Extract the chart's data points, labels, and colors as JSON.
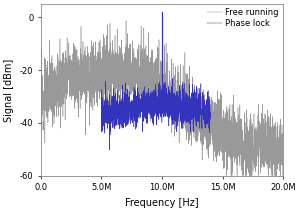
{
  "title": "",
  "xlabel": "Frequency [Hz]",
  "ylabel": "Signal [dBm]",
  "xlim": [
    0,
    20000000
  ],
  "ylim": [
    -60,
    5
  ],
  "xticks": [
    0,
    5000000,
    10000000,
    15000000,
    20000000
  ],
  "xtick_labels": [
    "0.0",
    "5.0M",
    "10.0M",
    "15.0M",
    "20.0M"
  ],
  "yticks": [
    -60,
    -40,
    -20,
    0
  ],
  "ytick_labels": [
    "-60",
    "-40",
    "-20",
    "0"
  ],
  "gray_color": "#999999",
  "blue_color": "#3333bb",
  "legend_labels": [
    "Free running",
    "Phase lock"
  ],
  "background_color": "#ffffff",
  "seed": 12
}
